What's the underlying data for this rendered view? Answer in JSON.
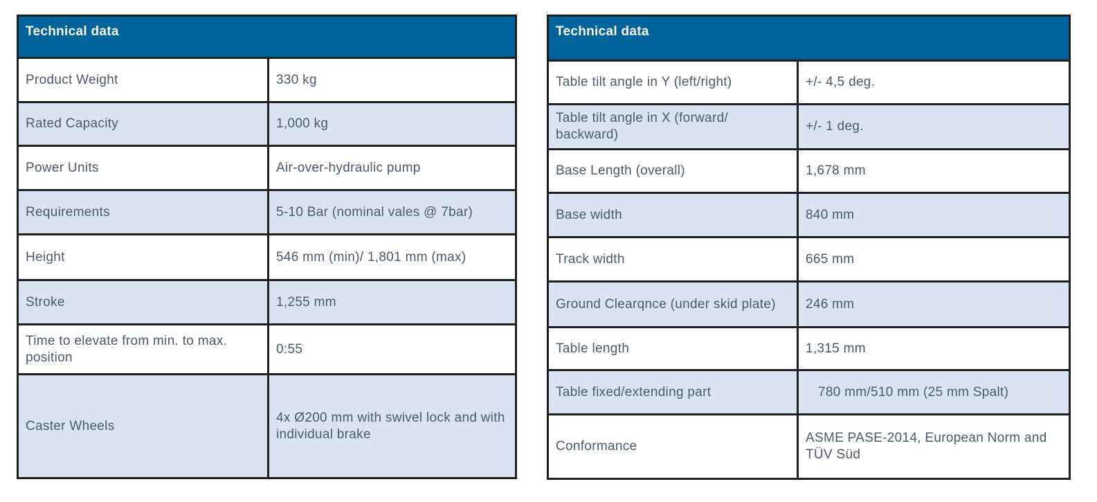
{
  "left_table": {
    "title": "Technical data",
    "rows": [
      {
        "label": "Product Weight",
        "value": "330 kg"
      },
      {
        "label": "Rated Capacity",
        "value": "1,000 kg"
      },
      {
        "label": "Power Units",
        "value": "Air-over-hydraulic pump"
      },
      {
        "label": "Requirements",
        "value": "5-10 Bar (nominal vales @ 7bar)"
      },
      {
        "label": "Height",
        "value": "546 mm (min)/ 1,801 mm (max)"
      },
      {
        "label": "Stroke",
        "value": "1,255 mm"
      },
      {
        "label": "Time to elevate from min. to max. position",
        "value": "0:55"
      },
      {
        "label": "Caster Wheels",
        "value": "4x Ø200 mm with swivel lock and with individual brake"
      }
    ]
  },
  "right_table": {
    "title": "Technical data",
    "rows": [
      {
        "label": "Table tilt angle in Y (left/right)",
        "value": "+/- 4,5 deg."
      },
      {
        "label": "Table tilt angle in X (forward/ backward)",
        "value": "+/- 1 deg."
      },
      {
        "label": "Base Length (overall)",
        "value": "1,678 mm"
      },
      {
        "label": "Base width",
        "value": "840 mm"
      },
      {
        "label": "Track width",
        "value": "665 mm"
      },
      {
        "label": "Ground Clearqnce (under skid plate)",
        "value": "246 mm"
      },
      {
        "label": "Table length",
        "value": "1,315 mm"
      },
      {
        "label": "Table fixed/extending part",
        "value": "780 mm/510 mm (25 mm Spalt)"
      },
      {
        "label": "Conformance",
        "value": "ASME PASE-2014, European Norm and TÜV Süd"
      }
    ]
  },
  "colors": {
    "header": "#00639c",
    "alt_row": "#dae3f1",
    "border": "#1e1e1e",
    "text": "#4b5968"
  }
}
